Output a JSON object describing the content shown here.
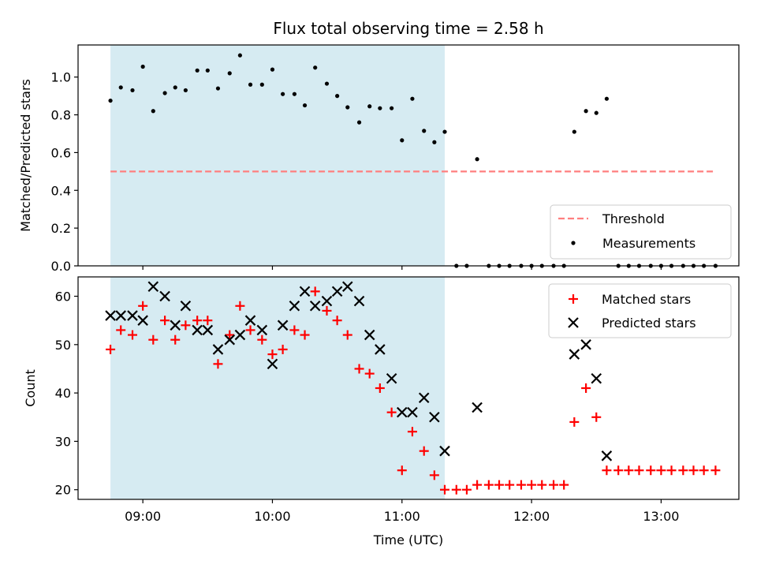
{
  "chart_data": [
    {
      "type": "scatter",
      "panel": "top",
      "title": "Flux total observing time = 2.58 h",
      "ylabel": "Matched/Predicted stars",
      "xlabel": "",
      "xlim": [
        8.5,
        13.6
      ],
      "ylim": [
        0,
        1.17
      ],
      "yticks": [
        0.0,
        0.2,
        0.4,
        0.6,
        0.8,
        1.0
      ],
      "ytick_labels": [
        "0.0",
        "0.2",
        "0.4",
        "0.6",
        "0.8",
        "1.0"
      ],
      "shaded_span": [
        8.75,
        11.33
      ],
      "shade_color": "#add8e6",
      "threshold": {
        "name": "Threshold",
        "y": 0.5,
        "x": [
          8.75,
          13.42
        ],
        "color": "#ff7f7f"
      },
      "series": [
        {
          "name": "Measurements",
          "color": "#000000",
          "x": [
            8.75,
            8.83,
            8.92,
            9.0,
            9.08,
            9.17,
            9.25,
            9.33,
            9.42,
            9.5,
            9.58,
            9.67,
            9.75,
            9.83,
            9.92,
            10.0,
            10.08,
            10.17,
            10.25,
            10.33,
            10.42,
            10.5,
            10.58,
            10.67,
            10.75,
            10.83,
            10.92,
            11.0,
            11.08,
            11.17,
            11.25,
            11.33,
            11.42,
            11.5,
            11.58,
            11.67,
            11.75,
            11.83,
            11.92,
            12.0,
            12.08,
            12.17,
            12.25,
            12.33,
            12.42,
            12.5,
            12.58,
            12.67,
            12.75,
            12.83,
            12.92,
            13.0,
            13.08,
            13.17,
            13.25,
            13.33,
            13.42
          ],
          "y": [
            0.875,
            0.945,
            0.93,
            1.055,
            0.82,
            0.915,
            0.945,
            0.93,
            1.035,
            1.035,
            0.94,
            1.02,
            1.115,
            0.96,
            0.96,
            1.04,
            0.91,
            0.91,
            0.85,
            1.05,
            0.965,
            0.9,
            0.84,
            0.76,
            0.845,
            0.835,
            0.835,
            0.665,
            0.885,
            0.715,
            0.655,
            0.71,
            0.0,
            0.0,
            0.565,
            0.0,
            0.0,
            0.0,
            0.0,
            0.0,
            0.0,
            0.0,
            0.0,
            0.71,
            0.82,
            0.81,
            0.885,
            0.0,
            0.0,
            0.0,
            0.0,
            0.0,
            0.0,
            0.0,
            0.0,
            0.0,
            0.0
          ]
        }
      ],
      "legend": {
        "placement": "lower-right",
        "entries": [
          {
            "label": "Threshold",
            "marker": "dashed-line",
            "color": "#ff7f7f"
          },
          {
            "label": "Measurements",
            "marker": "dot",
            "color": "#000000"
          }
        ]
      }
    },
    {
      "type": "scatter",
      "panel": "bottom",
      "title": "",
      "ylabel": "Count",
      "xlabel": "Time (UTC)",
      "xlim": [
        8.5,
        13.6
      ],
      "ylim": [
        18,
        64
      ],
      "xticks": [
        9,
        10,
        11,
        12,
        13
      ],
      "xtick_labels": [
        "09:00",
        "10:00",
        "11:00",
        "12:00",
        "13:00"
      ],
      "yticks": [
        20,
        30,
        40,
        50,
        60
      ],
      "ytick_labels": [
        "20",
        "30",
        "40",
        "50",
        "60"
      ],
      "shaded_span": [
        8.75,
        11.33
      ],
      "shade_color": "#add8e6",
      "series": [
        {
          "name": "Matched stars",
          "marker": "plus",
          "color": "#ff0000",
          "x": [
            8.75,
            8.83,
            8.92,
            9.0,
            9.08,
            9.17,
            9.25,
            9.33,
            9.42,
            9.5,
            9.58,
            9.67,
            9.75,
            9.83,
            9.92,
            10.0,
            10.08,
            10.17,
            10.25,
            10.33,
            10.42,
            10.5,
            10.58,
            10.67,
            10.75,
            10.83,
            10.92,
            11.0,
            11.08,
            11.17,
            11.25,
            11.33,
            11.42,
            11.5,
            11.58,
            11.67,
            11.75,
            11.83,
            11.92,
            12.0,
            12.08,
            12.17,
            12.25,
            12.33,
            12.42,
            12.5,
            12.58,
            12.67,
            12.75,
            12.83,
            12.92,
            13.0,
            13.08,
            13.17,
            13.25,
            13.33,
            13.42
          ],
          "y": [
            49,
            53,
            52,
            58,
            51,
            55,
            51,
            54,
            55,
            55,
            46,
            52,
            58,
            53,
            51,
            48,
            49,
            53,
            52,
            61,
            57,
            55,
            52,
            45,
            44,
            41,
            36,
            24,
            32,
            28,
            23,
            20,
            20,
            20,
            21,
            21,
            21,
            21,
            21,
            21,
            21,
            21,
            21,
            34,
            41,
            35,
            24,
            24,
            24,
            24,
            24,
            24,
            24,
            24,
            24,
            24,
            24
          ]
        },
        {
          "name": "Predicted stars",
          "marker": "x",
          "color": "#000000",
          "x": [
            8.75,
            8.83,
            8.92,
            9.0,
            9.08,
            9.17,
            9.25,
            9.33,
            9.42,
            9.5,
            9.58,
            9.67,
            9.75,
            9.83,
            9.92,
            10.0,
            10.08,
            10.17,
            10.25,
            10.33,
            10.42,
            10.5,
            10.58,
            10.67,
            10.75,
            10.83,
            10.92,
            11.0,
            11.08,
            11.17,
            11.25,
            11.33,
            11.58,
            12.33,
            12.42,
            12.5,
            12.58
          ],
          "y": [
            56,
            56,
            56,
            55,
            62,
            60,
            54,
            58,
            53,
            53,
            49,
            51,
            52,
            55,
            53,
            46,
            54,
            58,
            61,
            58,
            59,
            61,
            62,
            59,
            52,
            49,
            43,
            36,
            36,
            39,
            35,
            28,
            37,
            48,
            50,
            43,
            27
          ]
        }
      ],
      "legend": {
        "placement": "upper-right",
        "entries": [
          {
            "label": "Matched stars",
            "marker": "plus",
            "color": "#ff0000"
          },
          {
            "label": "Predicted stars",
            "marker": "x",
            "color": "#000000"
          }
        ]
      }
    }
  ]
}
